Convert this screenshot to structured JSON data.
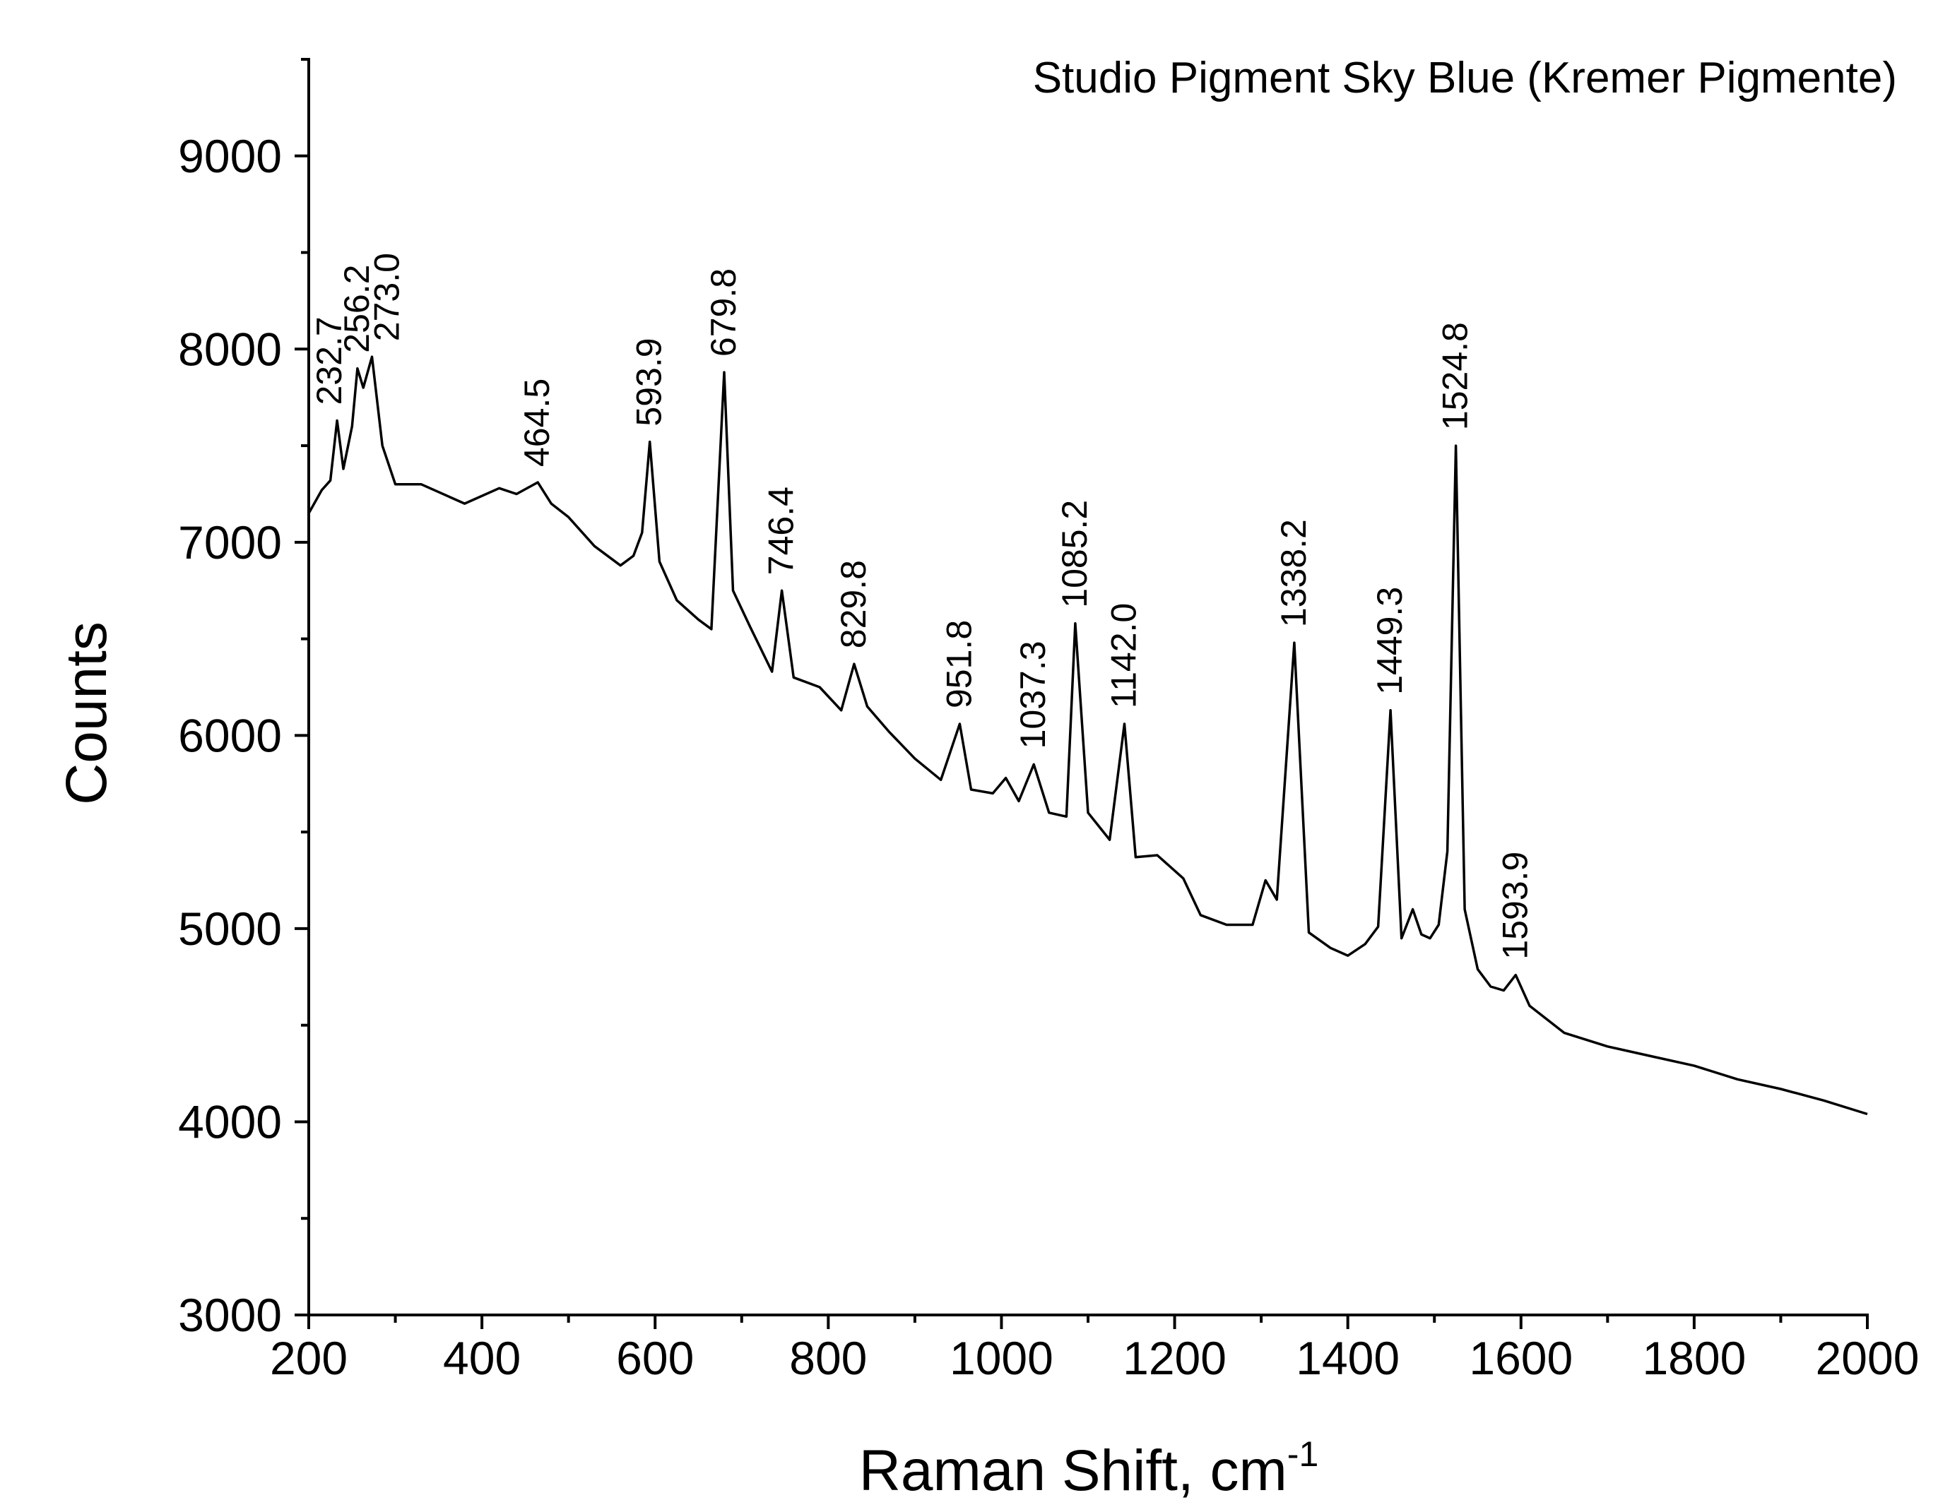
{
  "chart_data": {
    "type": "line",
    "title": "Studio Pigment Sky Blue (Kremer Pigmente)",
    "xlabel": "Raman Shift, cm",
    "xlabel_superscript": "-1",
    "ylabel": "Counts",
    "xlim": [
      200,
      2000
    ],
    "ylim": [
      3000,
      9500
    ],
    "x_ticks": [
      200,
      400,
      600,
      800,
      1000,
      1200,
      1400,
      1600,
      1800,
      2000
    ],
    "y_ticks": [
      3000,
      4000,
      5000,
      6000,
      7000,
      8000,
      9000
    ],
    "x_tick_labels": [
      "200",
      "400",
      "600",
      "800",
      "1000",
      "1200",
      "1400",
      "1600",
      "1800",
      "2000"
    ],
    "y_tick_labels": [
      "3000",
      "4000",
      "5000",
      "6000",
      "7000",
      "8000",
      "9000"
    ],
    "grid": false,
    "legend": "none",
    "series": [
      {
        "x": [
          200,
          215,
          225,
          232.7,
          240,
          250,
          256.2,
          263,
          273.0,
          285,
          300,
          330,
          360,
          380,
          420,
          440,
          464.5,
          480,
          500,
          530,
          560,
          575,
          585,
          593.9,
          605,
          625,
          650,
          665,
          679.8,
          690,
          710,
          735,
          746.4,
          760,
          790,
          815,
          829.8,
          845,
          870,
          900,
          930,
          951.8,
          965,
          990,
          1005,
          1020,
          1037.3,
          1055,
          1075,
          1085.2,
          1100,
          1125,
          1142.0,
          1155,
          1180,
          1210,
          1230,
          1260,
          1290,
          1305,
          1318,
          1338.2,
          1355,
          1380,
          1400,
          1420,
          1435,
          1449.3,
          1462,
          1475,
          1485,
          1495,
          1505,
          1515,
          1524.8,
          1535,
          1550,
          1565,
          1580,
          1593.9,
          1610,
          1650,
          1700,
          1750,
          1800,
          1850,
          1900,
          1950,
          2000
        ],
        "y": [
          7150,
          7270,
          7320,
          7630,
          7380,
          7600,
          7900,
          7800,
          7960,
          7500,
          7300,
          7300,
          7240,
          7200,
          7280,
          7250,
          7310,
          7200,
          7130,
          6980,
          6880,
          6930,
          7050,
          7520,
          6900,
          6700,
          6600,
          6550,
          7880,
          6750,
          6560,
          6330,
          6750,
          6300,
          6250,
          6130,
          6370,
          6150,
          6020,
          5880,
          5770,
          6060,
          5720,
          5700,
          5780,
          5660,
          5850,
          5600,
          5580,
          6580,
          5600,
          5460,
          6060,
          5370,
          5380,
          5260,
          5070,
          5020,
          5020,
          5250,
          5150,
          6480,
          4980,
          4900,
          4860,
          4920,
          5010,
          6130,
          4950,
          5100,
          4970,
          4950,
          5020,
          5400,
          7500,
          5100,
          4790,
          4700,
          4680,
          4760,
          4600,
          4460,
          4390,
          4340,
          4290,
          4220,
          4170,
          4110,
          4040
        ]
      }
    ],
    "annotations": [
      "232.7",
      "256.2",
      "273.0",
      "464.5",
      "593.9",
      "679.8",
      "746.4",
      "829.8",
      "951.8",
      "1037.3",
      "1085.2",
      "1142.0",
      "1338.2",
      "1449.3",
      "1524.8",
      "1593.9"
    ],
    "annotation_positions": [
      {
        "label_index": 0,
        "x": 232.7,
        "y": 7630
      },
      {
        "label_index": 1,
        "x": 256.2,
        "y": 7900
      },
      {
        "label_index": 2,
        "x": 273.0,
        "y": 7960
      },
      {
        "label_index": 3,
        "x": 464.5,
        "y": 7310
      },
      {
        "label_index": 4,
        "x": 593.9,
        "y": 7520
      },
      {
        "label_index": 5,
        "x": 679.8,
        "y": 7880
      },
      {
        "label_index": 6,
        "x": 746.4,
        "y": 6750
      },
      {
        "label_index": 7,
        "x": 829.8,
        "y": 6370
      },
      {
        "label_index": 8,
        "x": 951.8,
        "y": 6060
      },
      {
        "label_index": 9,
        "x": 1037.3,
        "y": 5850
      },
      {
        "label_index": 10,
        "x": 1085.2,
        "y": 6580
      },
      {
        "label_index": 11,
        "x": 1142.0,
        "y": 6060
      },
      {
        "label_index": 12,
        "x": 1338.2,
        "y": 6480
      },
      {
        "label_index": 13,
        "x": 1449.3,
        "y": 6130
      },
      {
        "label_index": 14,
        "x": 1524.8,
        "y": 7500
      },
      {
        "label_index": 15,
        "x": 1593.9,
        "y": 4760
      }
    ]
  }
}
